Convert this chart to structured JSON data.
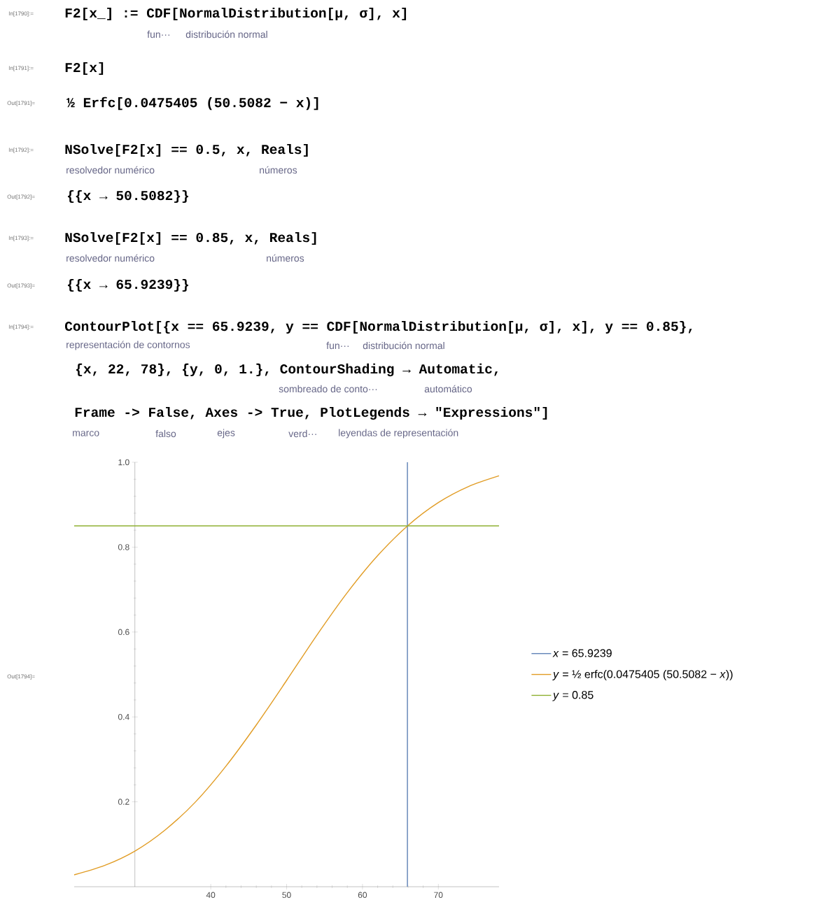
{
  "chart_data": {
    "type": "line",
    "series": [
      {
        "name": "*x* = 65.9239",
        "color": "#5e81b5",
        "x": [
          65.9239,
          65.9239
        ],
        "values": [
          0,
          1
        ]
      },
      {
        "name": "*y* = ½ erfc(0.0475405 (50.5082 − *x*))",
        "color": "#e19c24",
        "x": [
          22,
          26,
          30,
          34,
          38,
          42,
          46,
          50,
          54,
          58,
          62,
          66,
          70,
          74,
          78
        ],
        "values": [
          0.028,
          0.05,
          0.084,
          0.134,
          0.2,
          0.284,
          0.381,
          0.486,
          0.593,
          0.693,
          0.78,
          0.851,
          0.905,
          0.943,
          0.968
        ]
      },
      {
        "name": "*y* = 0.85",
        "color": "#8fb032",
        "x": [
          22,
          78
        ],
        "values": [
          0.85,
          0.85
        ]
      }
    ],
    "xlim": [
      22,
      78
    ],
    "ylim": [
      0,
      1
    ],
    "xticks": [
      40,
      50,
      60,
      70
    ],
    "yticks": [
      0.2,
      0.4,
      0.6,
      0.8,
      {
        "value": 1,
        "label": "1.0"
      }
    ],
    "legend": "right",
    "annotations": [
      "In[1790]:=",
      "F2[x_] := CDF[NormalDistribution[μ, σ], x]",
      "fun···",
      "distribución normal",
      "In[1791]:=",
      "F2[x]",
      "Out[1791]=",
      "½ Erfc[0.0475405 (50.5082 − x)]",
      "In[1792]:=",
      "NSolve[F2[x] == 0.5, x, Reals]",
      "resolvedor numérico",
      "números",
      "Out[1792]=",
      "{{x → 50.5082}}",
      "In[1793]:=",
      "NSolve[F2[x] == 0.85, x, Reals]",
      "resolvedor numérico",
      "números",
      "Out[1793]=",
      "{{x → 65.9239}}",
      "In[1794]:=",
      "ContourPlot[{x == 65.9239, y == CDF[NormalDistribution[μ, σ], x], y == 0.85},",
      "representación de contornos",
      "fun···",
      "distribución normal",
      "{x, 22, 78}, {y, 0, 1.}, ContourShading → Automatic,",
      "sombreado de conto···",
      "automático",
      "Frame -> False, Axes -> True, PlotLegends → \"Expressions\"]",
      "marco",
      "falso",
      "ejes",
      "verd···",
      "leyendas de representación",
      "Out[1794]="
    ]
  }
}
